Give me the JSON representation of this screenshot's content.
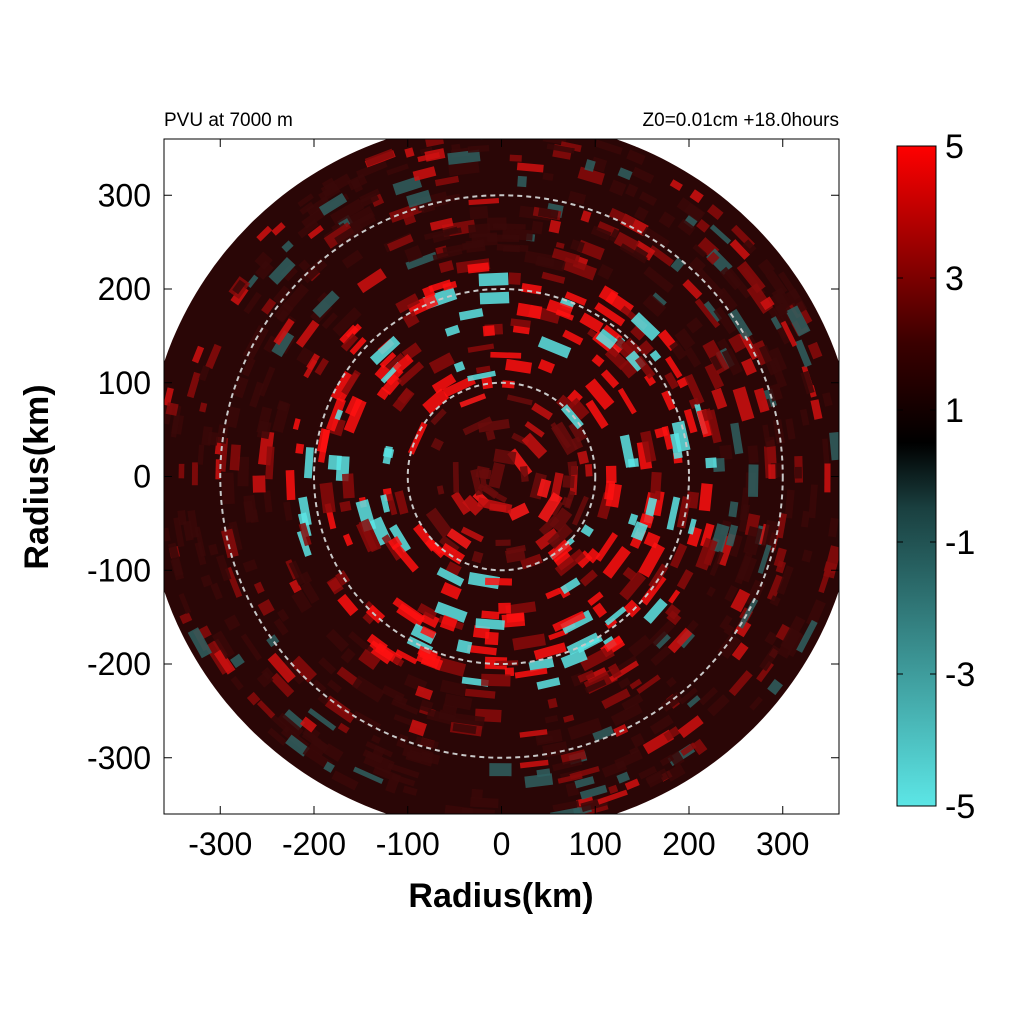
{
  "chart_data": {
    "type": "heatmap",
    "title_left": "PVU at  7000 m",
    "title_right": "Z0=0.01cm  +18.0hours",
    "xlabel": "Radius(km)",
    "ylabel": "Radius(km)",
    "xlim": [
      -360,
      360
    ],
    "ylim": [
      -360,
      360
    ],
    "x_ticks": [
      "-300",
      "-200",
      "-100",
      "0",
      "100",
      "200",
      "300"
    ],
    "y_ticks": [
      "300",
      "200",
      "100",
      "0",
      "-100",
      "-200",
      "-300"
    ],
    "x_tick_values": [
      -300,
      -200,
      -100,
      0,
      100,
      200,
      300
    ],
    "y_tick_values": [
      300,
      200,
      100,
      0,
      -100,
      -200,
      -300
    ],
    "domain_radius_km": 380,
    "reference_circles_km": [
      100,
      200,
      300
    ],
    "grid": false,
    "colorbar": {
      "range": [
        -5,
        5
      ],
      "tick_labels": [
        "5",
        "3",
        "1",
        "-1",
        "-3",
        "-5"
      ],
      "tick_values": [
        5,
        3,
        1,
        -1,
        -3,
        -5
      ],
      "colors": {
        "max": "#ff0000",
        "mid": "#000000",
        "min": "#5ce6e6"
      }
    },
    "colors": {
      "background_field": "#2a0606",
      "ring_line": "#c8c8c8"
    }
  }
}
